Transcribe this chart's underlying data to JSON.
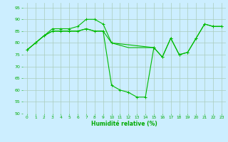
{
  "background_color": "#cceeff",
  "grid_color": "#aaccbb",
  "line_color": "#00bb00",
  "marker_color": "#00bb00",
  "xlabel": "Humidité relative (%)",
  "xlabel_color": "#00aa00",
  "tick_color": "#00aa00",
  "ylim": [
    50,
    97
  ],
  "xlim": [
    -0.5,
    23.5
  ],
  "yticks": [
    50,
    55,
    60,
    65,
    70,
    75,
    80,
    85,
    90,
    95
  ],
  "xticks": [
    0,
    1,
    2,
    3,
    4,
    5,
    6,
    7,
    8,
    9,
    10,
    11,
    12,
    13,
    14,
    15,
    16,
    17,
    18,
    19,
    20,
    21,
    22,
    23
  ],
  "series1_x": [
    0,
    1,
    2,
    3,
    4,
    5,
    6,
    7,
    8,
    9,
    10,
    15,
    16,
    17,
    18,
    19,
    20,
    21,
    22,
    23
  ],
  "series1_y": [
    77,
    80,
    83,
    86,
    86,
    86,
    87,
    90,
    90,
    88,
    80,
    78,
    74,
    82,
    75,
    76,
    82,
    88,
    87,
    87
  ],
  "series2_x": [
    0,
    1,
    2,
    3,
    4,
    5,
    6,
    7,
    8,
    9,
    10,
    11,
    12,
    13,
    14,
    15
  ],
  "series2_y": [
    77,
    80,
    83,
    85,
    85,
    85,
    85,
    86,
    85,
    85,
    80,
    79,
    78,
    78,
    78,
    78
  ],
  "series3_x": [
    0,
    1,
    2,
    3,
    4,
    5,
    6,
    7,
    8,
    9,
    10,
    11,
    12,
    13,
    14,
    15,
    16,
    17,
    18,
    19,
    20,
    21,
    22,
    23
  ],
  "series3_y": [
    77,
    80,
    83,
    85,
    85,
    85,
    85,
    86,
    85,
    85,
    62,
    60,
    59,
    57,
    57,
    78,
    74,
    82,
    75,
    76,
    82,
    88,
    87,
    87
  ]
}
